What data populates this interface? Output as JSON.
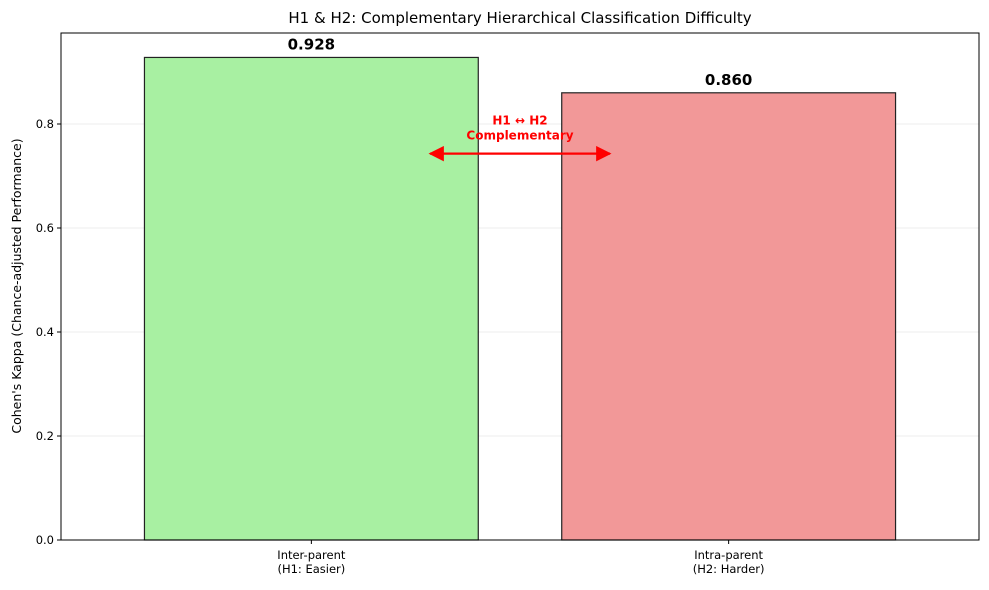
{
  "chart_data": {
    "type": "bar",
    "title": "H1 & H2: Complementary Hierarchical Classification Difficulty",
    "xlabel": "",
    "ylabel": "Cohen's Kappa (Chance-adjusted Performance)",
    "categories": [
      [
        "Inter-parent",
        "(H1: Easier)"
      ],
      [
        "Intra-parent",
        "(H2: Harder)"
      ]
    ],
    "values": [
      0.928,
      0.86
    ],
    "value_labels": [
      "0.928",
      "0.860"
    ],
    "bar_colors": [
      "#a8f0a2",
      "#f29898"
    ],
    "bar_edge_color": "#222222",
    "ylim": [
      0,
      0.975
    ],
    "yticks": [
      0.0,
      0.2,
      0.4,
      0.6,
      0.8
    ],
    "ytick_labels": [
      "0.0",
      "0.2",
      "0.4",
      "0.6",
      "0.8"
    ],
    "grid": "y",
    "annotation": {
      "lines": [
        "H1 ↔ H2",
        "Complementary"
      ],
      "color": "#ff0000",
      "arrow_y": 0.743,
      "arrow_style": "double-headed"
    }
  }
}
